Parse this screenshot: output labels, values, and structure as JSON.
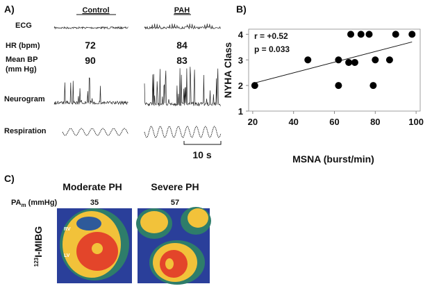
{
  "panel_a": {
    "label": "A)",
    "conditions": [
      "Control",
      "PAH"
    ],
    "ecg_label": "ECG",
    "hr_label": "HR (bpm)",
    "hr_values": [
      "72",
      "84"
    ],
    "bp_label": [
      "Mean BP",
      "(mm Hg)"
    ],
    "bp_values": [
      "90",
      "83"
    ],
    "neurogram_label": "Neurogram",
    "respiration_label": "Respiration",
    "scale_label": "10 s"
  },
  "chart_data": {
    "type": "scatter",
    "label": "B)",
    "x_label": "MSNA (burst/min)",
    "y_label": "NYHA Class",
    "annotations": [
      "r = +0.52",
      "p = 0.033"
    ],
    "x": [
      21,
      47,
      62,
      62,
      67,
      68,
      70,
      73,
      77,
      79,
      80,
      87,
      90,
      98
    ],
    "y": [
      2,
      3,
      3,
      2,
      2.9,
      4,
      2.9,
      4,
      4,
      2,
      3,
      3,
      4,
      4
    ],
    "color": "#000000",
    "trend_line": {
      "x": [
        21,
        98
      ],
      "y": [
        2.1,
        3.7
      ]
    },
    "xlim": [
      18,
      102
    ],
    "xticks": [
      20,
      40,
      60,
      80,
      100
    ],
    "ylim": [
      1,
      4.2
    ],
    "yticks": [
      1,
      2,
      3,
      4
    ]
  },
  "panel_c": {
    "label": "C)",
    "titles": [
      "Moderate PH",
      "Severe PH"
    ],
    "pa_label": {
      "main": "PA",
      "sub": "m",
      "rest": " (mmHg)"
    },
    "pa_values": [
      "35",
      "57"
    ],
    "rv": "RV",
    "lv": "LV",
    "tracer": {
      "sup": "123",
      "main": "I-MIBG"
    }
  }
}
